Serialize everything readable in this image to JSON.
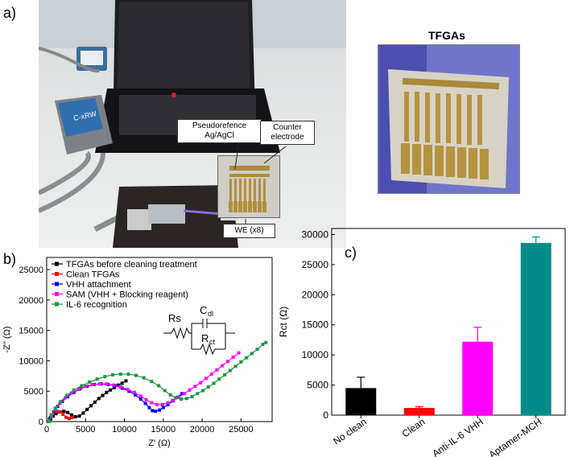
{
  "panel_labels": {
    "a": "a)",
    "b": "b)",
    "c": "c)"
  },
  "photo_a": {
    "callout_reference": "Pseudorefence\nAg/AgCl",
    "callout_reference_line1": "Pseudorefence",
    "callout_reference_line2": "Ag/AgCl",
    "callout_counter_line1": "Counter",
    "callout_counter_line2": "electrode",
    "callout_we": "WE (x8)",
    "device_label": "C-xRW"
  },
  "inset_title": "TFGAs",
  "circuit": {
    "rs": "Rs",
    "cdl": "C",
    "cdl_sub": "dl",
    "rct": "R",
    "rct_sub": "ct"
  },
  "chart_data": [
    {
      "type": "scatter",
      "panel": "b)",
      "xlabel": "Z' (Ω)",
      "ylabel": "-Z'' (Ω)",
      "xlim": [
        0,
        29000
      ],
      "ylim": [
        0,
        27000
      ],
      "xticks": [
        0,
        5000,
        10000,
        15000,
        20000,
        25000
      ],
      "yticks": [
        0,
        5000,
        10000,
        15000,
        20000,
        25000
      ],
      "legend_position": "top-left",
      "series": [
        {
          "name": "TFGAs before cleaning treatment",
          "color": "#000000",
          "points": [
            [
              300,
              0
            ],
            [
              500,
              400
            ],
            [
              800,
              900
            ],
            [
              1200,
              1300
            ],
            [
              1700,
              1600
            ],
            [
              2200,
              1700
            ],
            [
              2700,
              1500
            ],
            [
              3200,
              1100
            ],
            [
              3700,
              800
            ],
            [
              4200,
              900
            ],
            [
              4700,
              1400
            ],
            [
              5200,
              2000
            ],
            [
              5700,
              2600
            ],
            [
              6200,
              3200
            ],
            [
              6700,
              3800
            ],
            [
              7200,
              4300
            ],
            [
              7700,
              4800
            ],
            [
              8200,
              5200
            ],
            [
              8700,
              5600
            ],
            [
              9200,
              6000
            ],
            [
              9700,
              6300
            ],
            [
              10200,
              6700
            ]
          ]
        },
        {
          "name": "Clean TFGAs",
          "color": "#ff0000",
          "points": [
            [
              200,
              0
            ],
            [
              350,
              500
            ],
            [
              600,
              1100
            ],
            [
              900,
              1500
            ],
            [
              1300,
              1700
            ],
            [
              1700,
              1600
            ],
            [
              2100,
              1200
            ],
            [
              2500,
              700
            ],
            [
              2900,
              500
            ],
            [
              3300,
              700
            ]
          ]
        },
        {
          "name": "VHH attachment",
          "color": "#0000ff",
          "points": [
            [
              300,
              0
            ],
            [
              500,
              700
            ],
            [
              900,
              1600
            ],
            [
              1400,
              2500
            ],
            [
              2000,
              3300
            ],
            [
              2700,
              4100
            ],
            [
              3500,
              4800
            ],
            [
              4300,
              5400
            ],
            [
              5200,
              5800
            ],
            [
              6100,
              6100
            ],
            [
              7000,
              6200
            ],
            [
              7900,
              6100
            ],
            [
              8800,
              5900
            ],
            [
              9700,
              5500
            ],
            [
              10600,
              5000
            ],
            [
              11400,
              4400
            ],
            [
              12100,
              3700
            ],
            [
              12700,
              3000
            ],
            [
              13200,
              2300
            ],
            [
              13600,
              1800
            ],
            [
              14000,
              1700
            ],
            [
              14500,
              1900
            ],
            [
              15000,
              2300
            ],
            [
              15600,
              2800
            ],
            [
              16200,
              3400
            ],
            [
              16800,
              4000
            ],
            [
              17400,
              4600
            ]
          ]
        },
        {
          "name": "SAM (VHH + Blocking reagent)",
          "color": "#ff00ff",
          "points": [
            [
              300,
              0
            ],
            [
              600,
              900
            ],
            [
              1100,
              2000
            ],
            [
              1700,
              3000
            ],
            [
              2400,
              3900
            ],
            [
              3200,
              4700
            ],
            [
              4100,
              5300
            ],
            [
              5000,
              5800
            ],
            [
              5900,
              6100
            ],
            [
              6800,
              6200
            ],
            [
              7700,
              6200
            ],
            [
              8600,
              6000
            ],
            [
              9500,
              5700
            ],
            [
              10400,
              5300
            ],
            [
              11300,
              4800
            ],
            [
              12100,
              4200
            ],
            [
              12800,
              3600
            ],
            [
              13500,
              3100
            ],
            [
              14200,
              2800
            ],
            [
              14900,
              2800
            ],
            [
              15600,
              3100
            ],
            [
              16300,
              3500
            ],
            [
              17000,
              4000
            ],
            [
              17700,
              4600
            ],
            [
              18400,
              5200
            ],
            [
              19100,
              5800
            ],
            [
              19800,
              6400
            ],
            [
              20500,
              7100
            ],
            [
              21200,
              7800
            ],
            [
              21900,
              8500
            ],
            [
              22600,
              9200
            ],
            [
              23300,
              9900
            ],
            [
              24000,
              10600
            ],
            [
              24700,
              11300
            ]
          ]
        },
        {
          "name": "IL-6 recognition",
          "color": "#1a9641",
          "points": [
            [
              300,
              0
            ],
            [
              600,
              1000
            ],
            [
              1100,
              2200
            ],
            [
              1800,
              3300
            ],
            [
              2600,
              4300
            ],
            [
              3500,
              5200
            ],
            [
              4500,
              5900
            ],
            [
              5500,
              6500
            ],
            [
              6500,
              7000
            ],
            [
              7500,
              7400
            ],
            [
              8500,
              7700
            ],
            [
              9500,
              7800
            ],
            [
              10500,
              7800
            ],
            [
              11500,
              7600
            ],
            [
              12500,
              7200
            ],
            [
              13500,
              6600
            ],
            [
              14400,
              5900
            ],
            [
              15200,
              5100
            ],
            [
              15900,
              4400
            ],
            [
              16600,
              3900
            ],
            [
              17300,
              3700
            ],
            [
              18000,
              3800
            ],
            [
              18700,
              4100
            ],
            [
              19400,
              4600
            ],
            [
              20100,
              5100
            ],
            [
              20800,
              5700
            ],
            [
              21500,
              6300
            ],
            [
              22200,
              7000
            ],
            [
              22900,
              7700
            ],
            [
              23600,
              8400
            ],
            [
              24300,
              9100
            ],
            [
              25000,
              9800
            ],
            [
              25700,
              10500
            ],
            [
              26400,
              11200
            ],
            [
              27100,
              11900
            ],
            [
              27800,
              12700
            ],
            [
              28200,
              13000
            ]
          ]
        }
      ]
    },
    {
      "type": "bar",
      "panel": "c)",
      "ylabel": "Rct (Ω)",
      "ylim": [
        0,
        31000
      ],
      "yticks": [
        0,
        5000,
        10000,
        15000,
        20000,
        25000,
        30000
      ],
      "categories": [
        "No clean",
        "Clean",
        "Anti-IL-6 VHH",
        "Aptamer-MCH"
      ],
      "values": [
        4500,
        1200,
        12200,
        28600
      ],
      "errors": [
        1800,
        200,
        2400,
        1000
      ],
      "colors": [
        "#000000",
        "#ff0000",
        "#ff00ff",
        "#008b8b"
      ]
    }
  ]
}
